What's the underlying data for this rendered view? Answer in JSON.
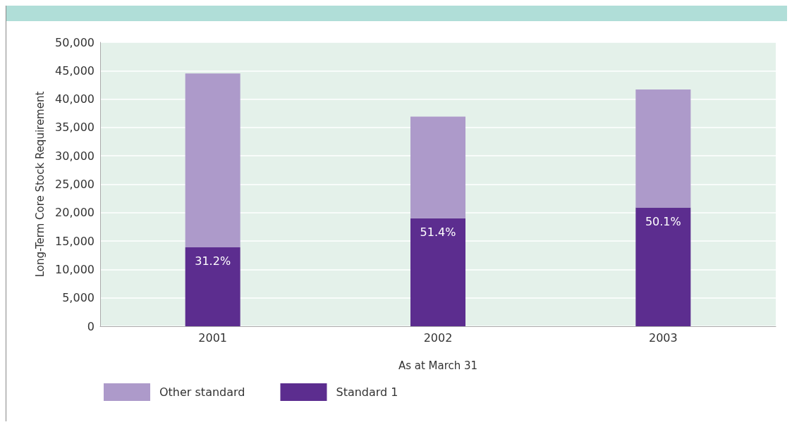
{
  "chart_data": {
    "type": "bar",
    "stacked": true,
    "categories": [
      "2001",
      "2002",
      "2003"
    ],
    "xlabel": "As at March 31",
    "ylabel": "Long-Term Core Stock Requirement",
    "series": [
      {
        "name": "Standard 1",
        "color": "#5c2d8f",
        "values": [
          13900,
          19000,
          20900
        ]
      },
      {
        "name": "Other standard",
        "color": "#ad9aca",
        "values": [
          30600,
          17900,
          20800
        ]
      }
    ],
    "annotations": [
      {
        "text": "31.2%",
        "x": "2001",
        "y": 13900
      },
      {
        "text": "51.4%",
        "x": "2002",
        "y": 19000
      },
      {
        "text": "50.1%",
        "x": "2003",
        "y": 20900
      }
    ],
    "ylim": [
      0,
      50000
    ],
    "yticks": [
      0,
      {
        "value": 5000,
        "label": "5,000"
      },
      {
        "value": 10000,
        "label": "10,000"
      },
      {
        "value": 15000,
        "label": "15,000"
      },
      {
        "value": 20000,
        "label": "20,000"
      },
      {
        "value": 25000,
        "label": "25,000"
      },
      {
        "value": 30000,
        "label": "30,000"
      },
      {
        "value": 35000,
        "label": "35,000"
      },
      {
        "value": 40000,
        "label": "40,000"
      },
      {
        "value": 45000,
        "label": "45,000"
      },
      {
        "value": 50000,
        "label": "50,000"
      }
    ],
    "grid": "y",
    "legend": "bottom left"
  }
}
